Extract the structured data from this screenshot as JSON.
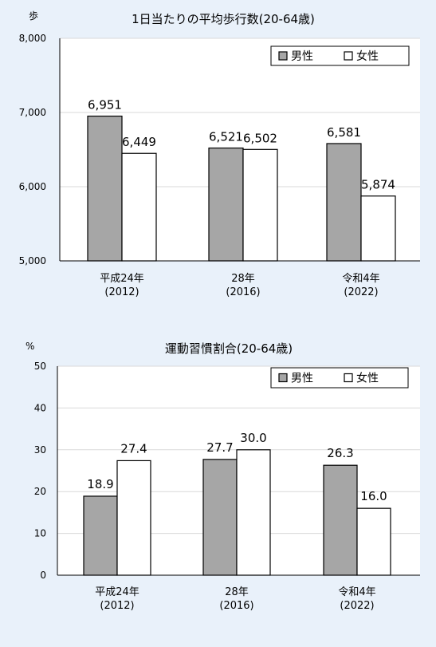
{
  "colors": {
    "background": "#e9f1fa",
    "plot_bg": "#ffffff",
    "male": "#a6a6a6",
    "female": "#ffffff",
    "grid": "#d9d9d9",
    "stroke": "#000000"
  },
  "chart_data": [
    {
      "type": "bar",
      "title": "1日当たりの平均歩行数(20-64歳)",
      "unit_label": "歩",
      "categories": [
        [
          "平成24年",
          "(2012)"
        ],
        [
          "28年",
          "(2016)"
        ],
        [
          "令和4年",
          "(2022)"
        ]
      ],
      "series": [
        {
          "name": "男性",
          "values": [
            6951,
            6521,
            6581
          ],
          "labels": [
            "6,951",
            "6,521",
            "6,581"
          ]
        },
        {
          "name": "女性",
          "values": [
            6449,
            6502,
            5874
          ],
          "labels": [
            "6,449",
            "6,502",
            "5,874"
          ]
        }
      ],
      "ylim": [
        5000,
        8000
      ],
      "yticks": [
        5000,
        6000,
        7000,
        8000
      ],
      "ytick_labels": [
        "5,000",
        "6,000",
        "7,000",
        "8,000"
      ],
      "grid": true,
      "legend_position": "top-right"
    },
    {
      "type": "bar",
      "title": "運動習慣割合(20-64歳)",
      "unit_label": "%",
      "categories": [
        [
          "平成24年",
          "(2012)"
        ],
        [
          "28年",
          "(2016)"
        ],
        [
          "令和4年",
          "(2022)"
        ]
      ],
      "series": [
        {
          "name": "男性",
          "values": [
            18.9,
            27.7,
            26.3
          ],
          "labels": [
            "18.9",
            "27.7",
            "26.3"
          ]
        },
        {
          "name": "女性",
          "values": [
            27.4,
            30.0,
            16.0
          ],
          "labels": [
            "27.4",
            "30.0",
            "16.0"
          ]
        }
      ],
      "ylim": [
        0,
        50
      ],
      "yticks": [
        0,
        10,
        20,
        30,
        40,
        50
      ],
      "ytick_labels": [
        "0",
        "10",
        "20",
        "30",
        "40",
        "50"
      ],
      "grid": true,
      "legend_position": "top-right"
    }
  ]
}
